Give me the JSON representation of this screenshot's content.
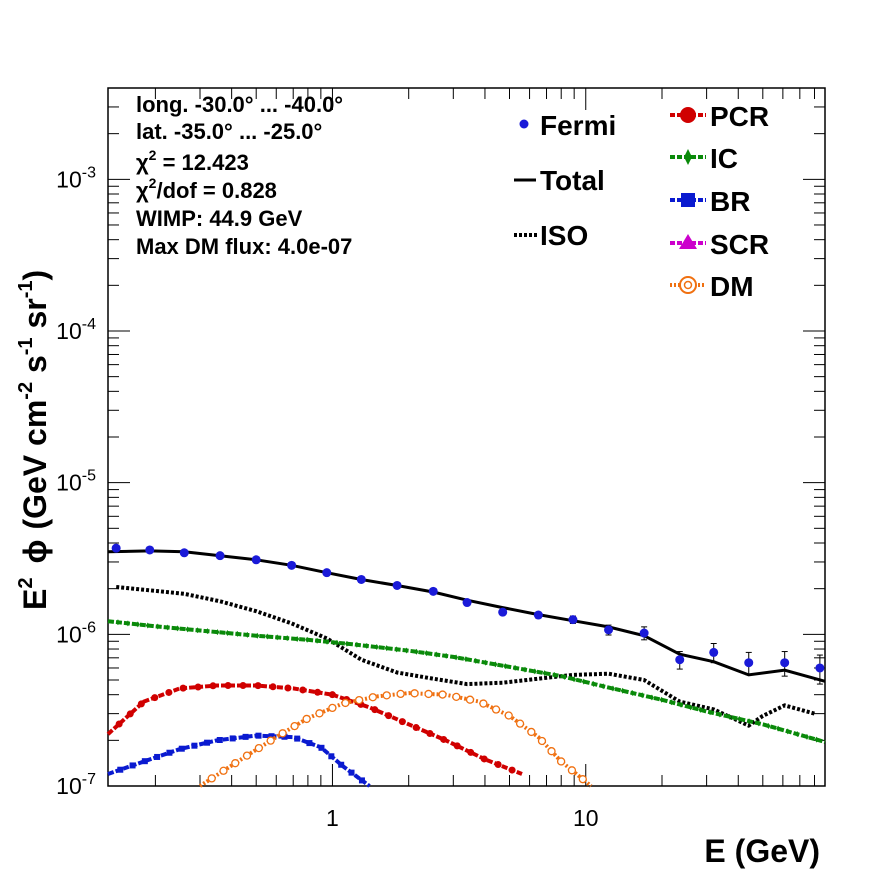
{
  "chart_data": {
    "type": "line",
    "xlabel": "E (GeV)",
    "ylabel_base": "E",
    "ylabel_sup": "2",
    "ylabel_phi": "ϕ",
    "ylabel_units": [
      "(GeV cm",
      "-2",
      " s",
      "-1",
      " sr",
      "-1",
      ")"
    ],
    "xscale": "log",
    "yscale": "log",
    "xlim": [
      0.13,
      88
    ],
    "ylim": [
      1e-07,
      0.004
    ],
    "x_ticks": [
      {
        "value": 1,
        "label": "1"
      },
      {
        "value": 10,
        "label": "10"
      }
    ],
    "y_ticks": [
      {
        "value": 1e-07,
        "base": "10",
        "exp": "-7"
      },
      {
        "value": 1e-06,
        "base": "10",
        "exp": "-6"
      },
      {
        "value": 1e-05,
        "base": "10",
        "exp": "-5"
      },
      {
        "value": 0.0001,
        "base": "10",
        "exp": "-4"
      },
      {
        "value": 0.001,
        "base": "10",
        "exp": "-3"
      }
    ],
    "info": {
      "line1": "long. -30.0° ... -40.0°",
      "line2": "lat. -35.0° ... -25.0°",
      "chi2_label": "χ",
      "chi2_value": " = 12.423",
      "chi2dof_value": "/dof = 0.828",
      "wimp": "WIMP: 44.9 GeV",
      "maxdm": "Max DM flux: 4.0e-07"
    },
    "legend": {
      "fermi": "Fermi",
      "total": "Total",
      "iso": "ISO",
      "pcr": "PCR",
      "ic": "IC",
      "br": "BR",
      "scr": "SCR",
      "dm": "DM"
    },
    "colors": {
      "fermi": "#1a1ad8",
      "total": "#000000",
      "iso": "#000000",
      "pcr": "#d00000",
      "ic": "#0a8a0a",
      "br": "#0a1ad0",
      "scr": "#cc00cc",
      "dm": "#f07010"
    },
    "series": [
      {
        "name": "Fermi",
        "style": "points",
        "points": [
          {
            "x": 0.14,
            "y": 3.7e-06,
            "err": 6e-08
          },
          {
            "x": 0.19,
            "y": 3.6e-06,
            "err": 5e-08
          },
          {
            "x": 0.26,
            "y": 3.45e-06,
            "err": 5e-08
          },
          {
            "x": 0.36,
            "y": 3.3e-06,
            "err": 5e-08
          },
          {
            "x": 0.5,
            "y": 3.1e-06,
            "err": 5e-08
          },
          {
            "x": 0.69,
            "y": 2.85e-06,
            "err": 5e-08
          },
          {
            "x": 0.95,
            "y": 2.55e-06,
            "err": 5e-08
          },
          {
            "x": 1.3,
            "y": 2.3e-06,
            "err": 5e-08
          },
          {
            "x": 1.8,
            "y": 2.1e-06,
            "err": 5e-08
          },
          {
            "x": 2.5,
            "y": 1.92e-06,
            "err": 5e-08
          },
          {
            "x": 3.4,
            "y": 1.62e-06,
            "err": 5e-08
          },
          {
            "x": 4.7,
            "y": 1.4e-06,
            "err": 5e-08
          },
          {
            "x": 6.5,
            "y": 1.34e-06,
            "err": 6e-08
          },
          {
            "x": 8.9,
            "y": 1.25e-06,
            "err": 7e-08
          },
          {
            "x": 12.3,
            "y": 1.07e-06,
            "err": 8e-08
          },
          {
            "x": 17,
            "y": 1.02e-06,
            "err": 1e-07
          },
          {
            "x": 23.5,
            "y": 6.8e-07,
            "err": 9e-08
          },
          {
            "x": 32,
            "y": 7.6e-07,
            "err": 1.1e-07
          },
          {
            "x": 44,
            "y": 6.5e-07,
            "err": 1.1e-07
          },
          {
            "x": 61,
            "y": 6.5e-07,
            "err": 1.2e-07
          },
          {
            "x": 84,
            "y": 6e-07,
            "err": 1.3e-07
          }
        ]
      },
      {
        "name": "Total",
        "style": "solid",
        "x": [
          0.13,
          0.19,
          0.26,
          0.36,
          0.5,
          0.69,
          0.95,
          1.3,
          1.8,
          2.5,
          3.4,
          4.7,
          6.5,
          8.9,
          12.3,
          17,
          23.5,
          32,
          44,
          61,
          88
        ],
        "y": [
          3.5e-06,
          3.55e-06,
          3.5e-06,
          3.3e-06,
          3.1e-06,
          2.85e-06,
          2.55e-06,
          2.3e-06,
          2.1e-06,
          1.9e-06,
          1.68e-06,
          1.5e-06,
          1.35e-06,
          1.23e-06,
          1.12e-06,
          9.8e-07,
          7.4e-07,
          6.6e-07,
          5.4e-07,
          5.8e-07,
          4.9e-07
        ]
      },
      {
        "name": "ISO",
        "style": "dotted",
        "x": [
          0.14,
          0.19,
          0.26,
          0.36,
          0.5,
          0.69,
          0.95,
          1.3,
          1.8,
          2.5,
          3.4,
          4.7,
          6.5,
          8.9,
          12.3,
          17,
          23.5,
          32,
          44,
          50,
          61,
          80
        ],
        "y": [
          2.05e-06,
          1.95e-06,
          1.85e-06,
          1.65e-06,
          1.42e-06,
          1.18e-06,
          9.4e-07,
          6.8e-07,
          5.6e-07,
          5.1e-07,
          4.7e-07,
          4.8e-07,
          5.1e-07,
          5.4e-07,
          5.5e-07,
          5e-07,
          3.6e-07,
          3.2e-07,
          2.5e-07,
          2.9e-07,
          3.4e-07,
          3e-07
        ]
      },
      {
        "name": "IC",
        "style": "dashed",
        "x": [
          0.13,
          0.2,
          0.3,
          0.5,
          0.8,
          1.2,
          2,
          3,
          5,
          8,
          12,
          20,
          30,
          50,
          88
        ],
        "y": [
          1.22e-06,
          1.13e-06,
          1.06e-06,
          9.8e-07,
          9.2e-07,
          8.6e-07,
          7.8e-07,
          7.1e-07,
          6.1e-07,
          5.3e-07,
          4.5e-07,
          3.7e-07,
          3.1e-07,
          2.55e-07,
          1.95e-07
        ]
      },
      {
        "name": "PCR",
        "style": "dashed",
        "x": [
          0.13,
          0.18,
          0.25,
          0.35,
          0.5,
          0.7,
          1.0,
          1.4,
          2.0,
          2.8,
          4.0,
          5.6,
          8.0
        ],
        "y": [
          2.2e-07,
          3.6e-07,
          4.4e-07,
          4.6e-07,
          4.6e-07,
          4.4e-07,
          4e-07,
          3.3e-07,
          2.55e-07,
          2e-07,
          1.5e-07,
          1.2e-07,
          9.5e-08
        ]
      },
      {
        "name": "BR",
        "style": "dashed",
        "x": [
          0.13,
          0.18,
          0.25,
          0.35,
          0.5,
          0.7,
          0.9,
          1.1,
          1.4
        ],
        "y": [
          1.2e-07,
          1.45e-07,
          1.75e-07,
          2e-07,
          2.15e-07,
          2.1e-07,
          1.8e-07,
          1.35e-07,
          1e-07
        ]
      },
      {
        "name": "DM",
        "style": "dashed",
        "x": [
          0.3,
          0.45,
          0.6,
          0.8,
          1.1,
          1.5,
          2.0,
          2.8,
          3.8,
          5.0,
          6.5,
          8.0,
          10.5
        ],
        "y": [
          1e-07,
          1.55e-07,
          2.1e-07,
          2.8e-07,
          3.5e-07,
          3.9e-07,
          4.1e-07,
          4e-07,
          3.6e-07,
          2.9e-07,
          2.1e-07,
          1.45e-07,
          1e-07
        ]
      }
    ]
  }
}
